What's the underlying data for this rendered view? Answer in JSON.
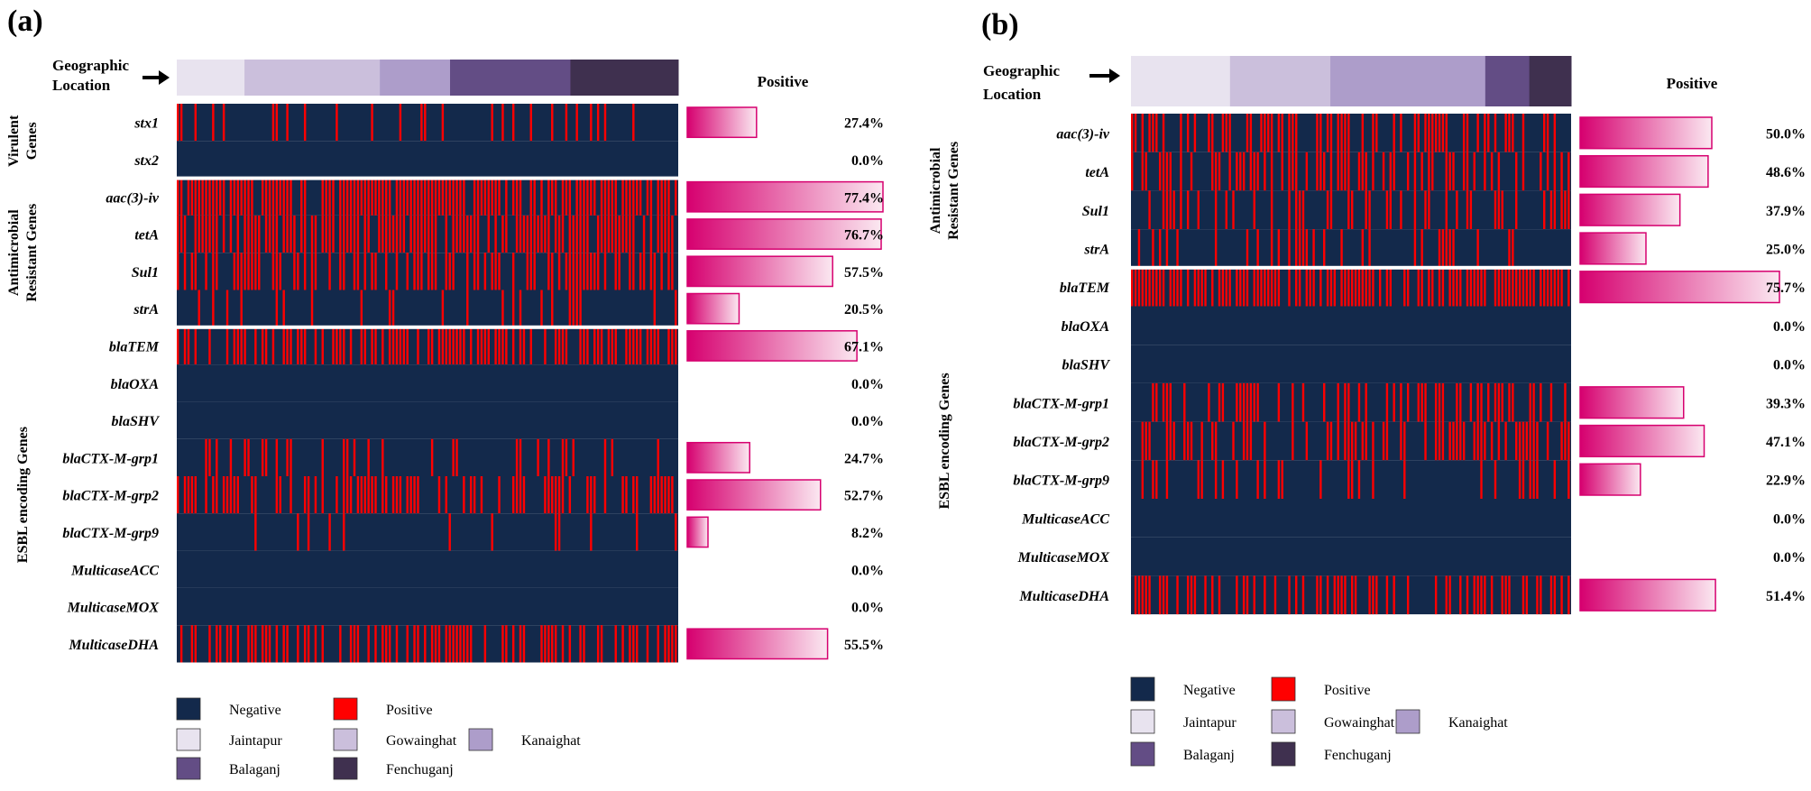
{
  "colors": {
    "negative": "#13294b",
    "positive": "#ff0000",
    "bar_start": "#d6006f",
    "bar_end": "#fbe8f1",
    "bar_stroke": "#d6006f",
    "jaintapur": "#e8e3ef",
    "gowainghat": "#cbbfdc",
    "kanaighat": "#ad9dca",
    "balaganj": "#634d85",
    "fenchuganj": "#3f304f"
  },
  "legend": {
    "negative": "Negative",
    "positive": "Positive",
    "jaintapur": "Jaintapur",
    "gowainghat": "Gowainghat",
    "kanaighat": "Kanaighat",
    "balaganj": "Balaganj",
    "fenchuganj": "Fenchuganj"
  },
  "chart_data": [
    {
      "type": "heatmap",
      "panel_label": "(a)",
      "geo_label_line1": "Geographic",
      "geo_label_line2": "Location",
      "positive_title": "Positive",
      "location_segments": [
        {
          "name": "Jaintapur",
          "color": "#e8e3ef",
          "fraction": 0.135
        },
        {
          "name": "Gowainghat",
          "color": "#cbbfdc",
          "fraction": 0.27
        },
        {
          "name": "Kanaighat",
          "color": "#ad9dca",
          "fraction": 0.14
        },
        {
          "name": "Balaganj",
          "color": "#634d85",
          "fraction": 0.24
        },
        {
          "name": "Fenchuganj",
          "color": "#3f304f",
          "fraction": 0.215
        }
      ],
      "groups": [
        {
          "label_line1": "Virulent",
          "label_line2": "Genes",
          "genes": [
            {
              "name": "stx1",
              "percent": 27.4,
              "label": "27.4%"
            },
            {
              "name": "stx2",
              "percent": 0.0,
              "label": "0.0%"
            }
          ]
        },
        {
          "label_line1": "Antimicrobial",
          "label_line2": "Resistant Genes",
          "genes": [
            {
              "name": "aac(3)-iv",
              "percent": 77.4,
              "label": "77.4%"
            },
            {
              "name": "tetA",
              "percent": 76.7,
              "label": "76.7%"
            },
            {
              "name": "Sul1",
              "percent": 57.5,
              "label": "57.5%"
            },
            {
              "name": "strA",
              "percent": 20.5,
              "label": "20.5%"
            }
          ]
        },
        {
          "label_line1": "ESBL encoding Genes",
          "label_line2": "",
          "genes": [
            {
              "name": "blaTEM",
              "percent": 67.1,
              "label": "67.1%"
            },
            {
              "name": "blaOXA",
              "percent": 0.0,
              "label": "0.0%"
            },
            {
              "name": "blaSHV",
              "percent": 0.0,
              "label": "0.0%"
            },
            {
              "name": "blaCTX-M-grp1",
              "percent": 24.7,
              "label": "24.7%"
            },
            {
              "name": "blaCTX-M-grp2",
              "percent": 52.7,
              "label": "52.7%"
            },
            {
              "name": "blaCTX-M-grp9",
              "percent": 8.2,
              "label": "8.2%"
            },
            {
              "name": "MulticaseACC",
              "percent": 0.0,
              "label": "0.0%"
            },
            {
              "name": "MulticaseMOX",
              "percent": 0.0,
              "label": "0.0%"
            },
            {
              "name": "MulticaseDHA",
              "percent": 55.5,
              "label": "55.5%"
            }
          ]
        }
      ]
    },
    {
      "type": "heatmap",
      "panel_label": "(b)",
      "geo_label_line1": "Geographic",
      "geo_label_line2": "Location",
      "positive_title": "Positive",
      "location_segments": [
        {
          "name": "Jaintapur",
          "color": "#e8e3ef",
          "fraction": 0.225
        },
        {
          "name": "Gowainghat",
          "color": "#cbbfdc",
          "fraction": 0.228
        },
        {
          "name": "Kanaighat",
          "color": "#ad9dca",
          "fraction": 0.352
        },
        {
          "name": "Balaganj",
          "color": "#634d85",
          "fraction": 0.1
        },
        {
          "name": "Fenchuganj",
          "color": "#3f304f",
          "fraction": 0.095
        }
      ],
      "groups": [
        {
          "label_line1": "Antimicrobial",
          "label_line2": "Resistant Genes",
          "genes": [
            {
              "name": "aac(3)-iv",
              "percent": 50.0,
              "label": "50.0%"
            },
            {
              "name": "tetA",
              "percent": 48.6,
              "label": "48.6%"
            },
            {
              "name": "Sul1",
              "percent": 37.9,
              "label": "37.9%"
            },
            {
              "name": "strA",
              "percent": 25.0,
              "label": "25.0%"
            }
          ]
        },
        {
          "label_line1": "ESBL encoding Genes",
          "label_line2": "",
          "genes": [
            {
              "name": "blaTEM",
              "percent": 75.7,
              "label": "75.7%"
            },
            {
              "name": "blaOXA",
              "percent": 0.0,
              "label": "0.0%"
            },
            {
              "name": "blaSHV",
              "percent": 0.0,
              "label": "0.0%"
            },
            {
              "name": "blaCTX-M-grp1",
              "percent": 39.3,
              "label": "39.3%"
            },
            {
              "name": "blaCTX-M-grp2",
              "percent": 47.1,
              "label": "47.1%"
            },
            {
              "name": "blaCTX-M-grp9",
              "percent": 22.9,
              "label": "22.9%"
            },
            {
              "name": "MulticaseACC",
              "percent": 0.0,
              "label": "0.0%"
            },
            {
              "name": "MulticaseMOX",
              "percent": 0.0,
              "label": "0.0%"
            },
            {
              "name": "MulticaseDHA",
              "percent": 51.4,
              "label": "51.4%"
            }
          ]
        }
      ]
    }
  ]
}
